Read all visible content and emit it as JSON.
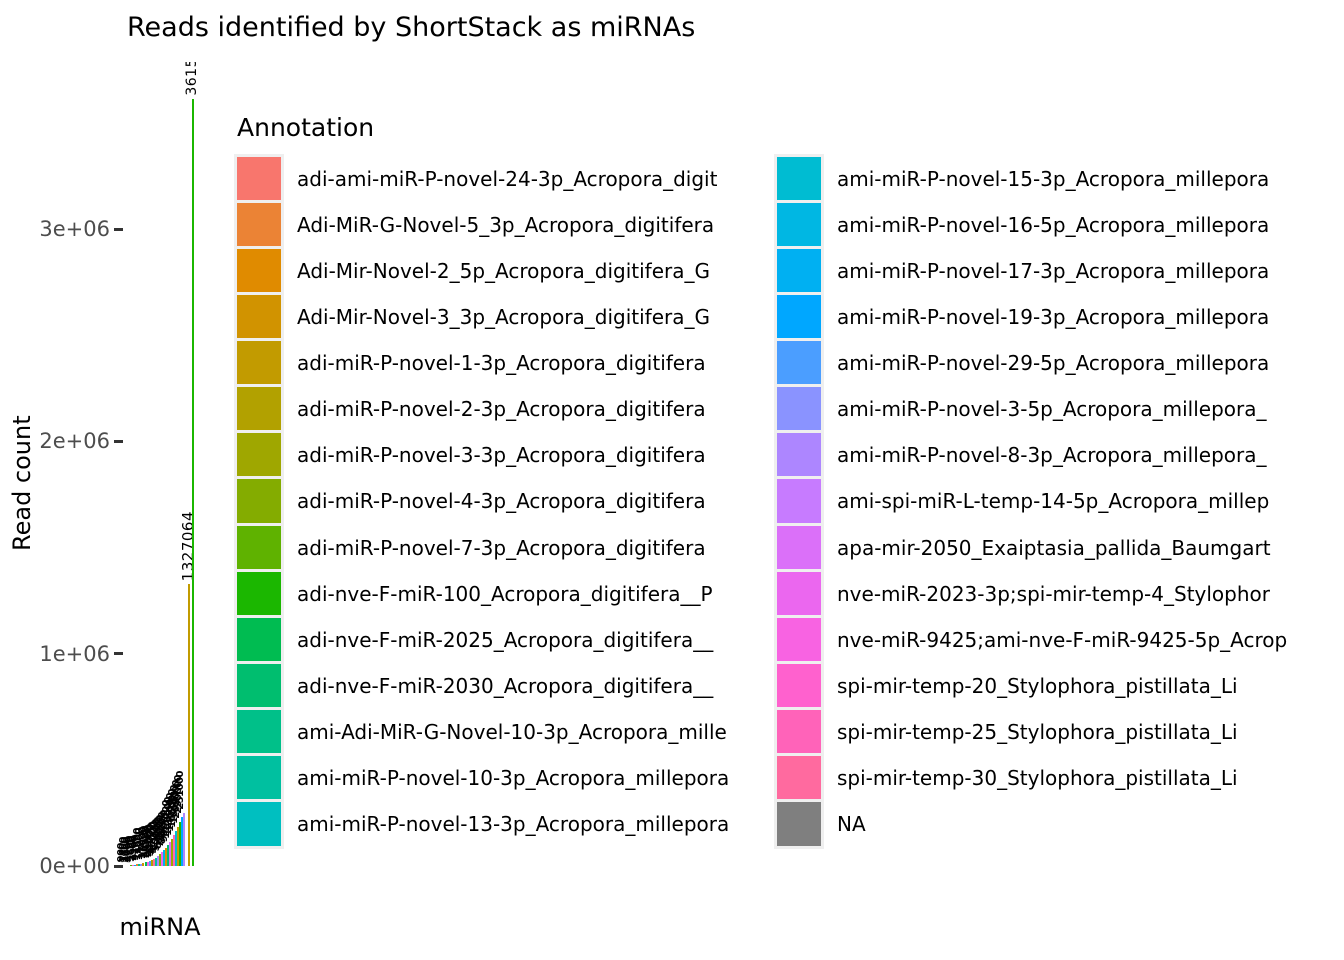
{
  "title": "Reads identified by ShortStack as miRNAs",
  "axes": {
    "x_label": "miRNA",
    "y_label": "Read count"
  },
  "legend": {
    "title": "Annotation",
    "columns": [
      [
        {
          "label": "adi-ami-miR-P-novel-24-3p_Acropora_digit",
          "color": "#F8766D"
        },
        {
          "label": "Adi-MiR-G-Novel-5_3p_Acropora_digitifera",
          "color": "#EB8335"
        },
        {
          "label": "Adi-Mir-Novel-2_5p_Acropora_digitifera_G",
          "color": "#E08B00"
        },
        {
          "label": "Adi-Mir-Novel-3_3p_Acropora_digitifera_G",
          "color": "#D19300"
        },
        {
          "label": "adi-miR-P-novel-1-3p_Acropora_digitifera",
          "color": "#C29B00"
        },
        {
          "label": "adi-miR-P-novel-2-3p_Acropora_digitifera",
          "color": "#B2A100"
        },
        {
          "label": "adi-miR-P-novel-3-3p_Acropora_digitifera",
          "color": "#9FA700"
        },
        {
          "label": "adi-miR-P-novel-4-3p_Acropora_digitifera",
          "color": "#84AC00"
        },
        {
          "label": "adi-miR-P-novel-7-3p_Acropora_digitifera",
          "color": "#5FB200"
        },
        {
          "label": "adi-nve-F-miR-100_Acropora_digitifera__P",
          "color": "#1BB700"
        },
        {
          "label": "adi-nve-F-miR-2025_Acropora_digitifera__",
          "color": "#00BC51"
        },
        {
          "label": "adi-nve-F-miR-2030_Acropora_digitifera__",
          "color": "#00BE6F"
        },
        {
          "label": "ami-Adi-MiR-G-Novel-10-3p_Acropora_mille",
          "color": "#00C089"
        },
        {
          "label": "ami-miR-P-novel-10-3p_Acropora_millepora",
          "color": "#00C0A0"
        },
        {
          "label": "ami-miR-P-novel-13-3p_Acropora_millepora",
          "color": "#00BFC0"
        }
      ],
      [
        {
          "label": "ami-miR-P-novel-15-3p_Acropora_millepora",
          "color": "#00BCD2"
        },
        {
          "label": "ami-miR-P-novel-16-5p_Acropora_millepora",
          "color": "#00B7E3"
        },
        {
          "label": "ami-miR-P-novel-17-3p_Acropora_millepora",
          "color": "#00B0F2"
        },
        {
          "label": "ami-miR-P-novel-19-3p_Acropora_millepora",
          "color": "#00A7FF"
        },
        {
          "label": "ami-miR-P-novel-29-5p_Acropora_millepora",
          "color": "#4B9EFF"
        },
        {
          "label": "ami-miR-P-novel-3-5p_Acropora_millepora_",
          "color": "#8A93FF"
        },
        {
          "label": "ami-miR-P-novel-8-3p_Acropora_millepora_",
          "color": "#AD86FF"
        },
        {
          "label": "ami-spi-miR-L-temp-14-5p_Acropora_millep",
          "color": "#C77BFF"
        },
        {
          "label": "apa-mir-2050_Exaiptasia_pallida_Baumgart",
          "color": "#DB70F9"
        },
        {
          "label": "nve-miR-2023-3p;spi-mir-temp-4_Stylophor",
          "color": "#EB67EF"
        },
        {
          "label": "nve-miR-9425;ami-nve-F-miR-9425-5p_Acrop",
          "color": "#F863E2"
        },
        {
          "label": "spi-mir-temp-20_Stylophora_pistillata_Li",
          "color": "#FF61CE"
        },
        {
          "label": "spi-mir-temp-25_Stylophora_pistillata_Li",
          "color": "#FF63B9"
        },
        {
          "label": "spi-mir-temp-30_Stylophora_pistillata_Li",
          "color": "#FF6A9F"
        },
        {
          "label": "NA",
          "color": "#7F7F7F"
        }
      ]
    ]
  },
  "chart_data": {
    "type": "bar",
    "title": "Reads identified by ShortStack as miRNAs",
    "xlabel": "miRNA",
    "ylabel": "Read count",
    "ylim": [
      0,
      3800000
    ],
    "grid": false,
    "legend_position": "right-of-plot, two columns",
    "y_ticks": [
      {
        "label": "0e+00",
        "value": 0
      },
      {
        "label": "1e+06",
        "value": 1000000
      },
      {
        "label": "2e+06",
        "value": 2000000
      },
      {
        "label": "3e+06",
        "value": 3000000
      }
    ],
    "notes": "Bars are very thin and tightly clustered; rotated (90deg) black value labels overlap into an unreadable mass except the two tallest bars. Small bar values are visual estimates. Tallest bar label is clipped at panel top, visible digits '3615'.",
    "small_bar_values_are_estimates": true,
    "bars": [
      {
        "value": 900,
        "color": "#F8766D"
      },
      {
        "value": 1400,
        "color": "#00BFC0"
      },
      {
        "value": 2100,
        "color": "#C77BFF"
      },
      {
        "value": 3000,
        "color": "#5FB200"
      },
      {
        "value": 4200,
        "color": "#FF61CE"
      },
      {
        "value": 5600,
        "color": "#00B0F2"
      },
      {
        "value": 7300,
        "color": "#EB8335"
      },
      {
        "value": 9200,
        "color": "#00C089"
      },
      {
        "value": 11500,
        "color": "#8A93FF"
      },
      {
        "value": 14000,
        "color": "#D19300"
      },
      {
        "value": 17000,
        "color": "#00BC51"
      },
      {
        "value": 20500,
        "color": "#F863E2"
      },
      {
        "value": 24500,
        "color": "#4B9EFF"
      },
      {
        "value": 29000,
        "color": "#B2A100"
      },
      {
        "value": 34000,
        "color": "#FF6A9F"
      },
      {
        "value": 40000,
        "color": "#00C0A0"
      },
      {
        "value": 47000,
        "color": "#AD86FF"
      },
      {
        "value": 55000,
        "color": "#84AC00"
      },
      {
        "value": 64000,
        "color": "#EB67EF"
      },
      {
        "value": 74000,
        "color": "#00B7E3"
      },
      {
        "value": 86000,
        "color": "#E08B00"
      },
      {
        "value": 99000,
        "color": "#00BE6F"
      },
      {
        "value": 113000,
        "color": "#DB70F9"
      },
      {
        "value": 129000,
        "color": "#9FA700"
      },
      {
        "value": 146000,
        "color": "#FF63B9"
      },
      {
        "value": 165000,
        "color": "#00BCD2"
      },
      {
        "value": 186000,
        "color": "#C29B00"
      },
      {
        "value": 209000,
        "color": "#1BB700"
      },
      {
        "value": 230000,
        "color": "#00A7FF"
      },
      {
        "value": 251000,
        "color": "#AD86FF"
      },
      {
        "value": 1327064,
        "label": "1327064",
        "color": "#C29B00"
      },
      {
        "value": 3615000,
        "label": "3615",
        "label_clipped": true,
        "color": "#1BB700"
      }
    ]
  }
}
